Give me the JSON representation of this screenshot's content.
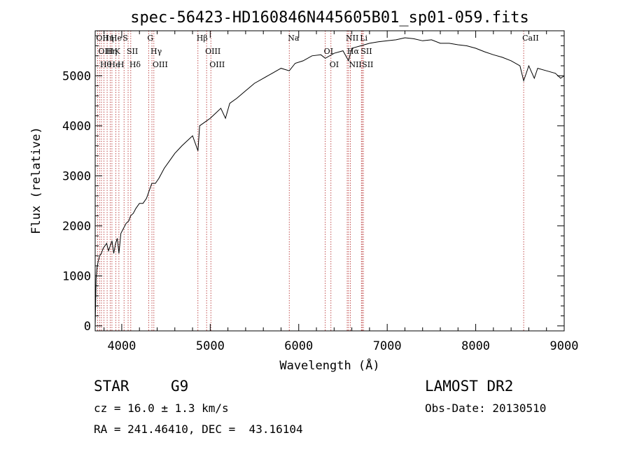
{
  "chart_data": {
    "type": "line",
    "title": "spec-56423-HD160846N445605B01_sp01-059.fits",
    "xlabel": "Wavelength (Å)",
    "ylabel": "Flux (relative)",
    "xlim": [
      3700,
      9000
    ],
    "ylim": [
      -100,
      5900
    ],
    "xticks": [
      "4000",
      "5000",
      "6000",
      "7000",
      "8000",
      "9000"
    ],
    "yticks": [
      "0",
      "1000",
      "2000",
      "3000",
      "4000",
      "5000"
    ],
    "grid": false,
    "series": [
      {
        "x": [
          3700,
          3710,
          3720,
          3735,
          3750,
          3770,
          3790,
          3810,
          3830,
          3850,
          3870,
          3890,
          3910,
          3930,
          3950,
          3968,
          3990,
          4020,
          4050,
          4080,
          4100,
          4130,
          4160,
          4200,
          4240,
          4280,
          4300,
          4340,
          4380,
          4420,
          4480,
          4540,
          4600,
          4680,
          4740,
          4800,
          4861,
          4880,
          4920,
          4960,
          5000,
          5060,
          5120,
          5172,
          5220,
          5300,
          5400,
          5500,
          5600,
          5700,
          5800,
          5893,
          5960,
          6050,
          6150,
          6250,
          6300,
          6400,
          6500,
          6563,
          6600,
          6700,
          6800,
          6900,
          7000,
          7100,
          7200,
          7300,
          7400,
          7500,
          7600,
          7700,
          7800,
          7900,
          8000,
          8100,
          8200,
          8300,
          8400,
          8500,
          8542,
          8600,
          8662,
          8700,
          8800,
          8900,
          8960,
          9000
        ],
        "y": [
          0,
          950,
          1150,
          1300,
          1400,
          1450,
          1550,
          1600,
          1650,
          1500,
          1600,
          1700,
          1450,
          1650,
          1750,
          1450,
          1850,
          1950,
          2050,
          2100,
          2200,
          2250,
          2350,
          2450,
          2450,
          2550,
          2650,
          2850,
          2850,
          2950,
          3150,
          3300,
          3450,
          3600,
          3700,
          3800,
          3500,
          4000,
          4050,
          4100,
          4150,
          4250,
          4350,
          4150,
          4450,
          4550,
          4700,
          4850,
          4950,
          5050,
          5150,
          5100,
          5250,
          5300,
          5400,
          5420,
          5350,
          5450,
          5500,
          5300,
          5550,
          5600,
          5650,
          5680,
          5700,
          5720,
          5760,
          5740,
          5700,
          5720,
          5650,
          5650,
          5620,
          5600,
          5550,
          5480,
          5420,
          5370,
          5300,
          5200,
          4900,
          5200,
          4950,
          5150,
          5100,
          5050,
          4950,
          5000
        ]
      }
    ],
    "line_markers": [
      {
        "x": 3727,
        "label": "OII"
      },
      {
        "x": 3750,
        "label": "OIII"
      },
      {
        "x": 3771,
        "label": "Hθ"
      },
      {
        "x": 3798,
        "label": "Hη"
      },
      {
        "x": 3835,
        "label": "Hη"
      },
      {
        "x": 3869,
        "label": "He"
      },
      {
        "x": 3889,
        "label": "He"
      },
      {
        "x": 3934,
        "label": "K"
      },
      {
        "x": 3968,
        "label": "H"
      },
      {
        "x": 4026,
        "label": "S"
      },
      {
        "x": 4072,
        "label": "SII"
      },
      {
        "x": 4102,
        "label": "Hδ"
      },
      {
        "x": 4304,
        "label": "G"
      },
      {
        "x": 4341,
        "label": "Hγ"
      },
      {
        "x": 4363,
        "label": "OIII"
      },
      {
        "x": 4861,
        "label": "Hβ"
      },
      {
        "x": 4959,
        "label": "OIII"
      },
      {
        "x": 5007,
        "label": "OIII"
      },
      {
        "x": 5893,
        "label": "Na"
      },
      {
        "x": 6300,
        "label": "OI"
      },
      {
        "x": 6364,
        "label": "OI"
      },
      {
        "x": 6548,
        "label": "NII"
      },
      {
        "x": 6563,
        "label": "Hα"
      },
      {
        "x": 6583,
        "label": "NII"
      },
      {
        "x": 6708,
        "label": "Li"
      },
      {
        "x": 6717,
        "label": "SII"
      },
      {
        "x": 6731,
        "label": "SII"
      },
      {
        "x": 8542,
        "label": "CaII"
      }
    ],
    "marker_color": "#b22222",
    "line_color": "#000000"
  },
  "info": {
    "class_label": "STAR",
    "subclass": "G9",
    "survey": "LAMOST DR2",
    "cz": "cz = 16.0 ± 1.3 km/s",
    "obs_date": "Obs-Date: 20130510",
    "coords": "RA = 241.46410, DEC =  43.16104"
  }
}
